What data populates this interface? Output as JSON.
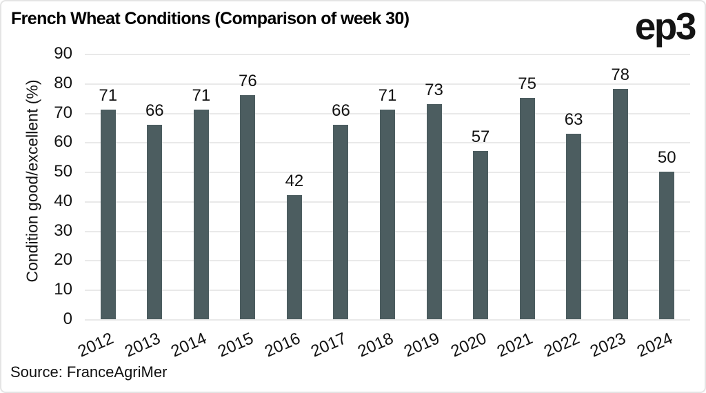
{
  "header": {
    "logo_text": "ep3"
  },
  "chart_data": {
    "type": "bar",
    "title": "French Wheat Conditions (Comparison of week 30)",
    "categories": [
      "2012",
      "2013",
      "2014",
      "2015",
      "2016",
      "2017",
      "2018",
      "2019",
      "2020",
      "2021",
      "2022",
      "2023",
      "2024"
    ],
    "values": [
      71,
      66,
      71,
      76,
      42,
      66,
      71,
      73,
      57,
      75,
      63,
      78,
      50
    ],
    "xlabel": "",
    "ylabel": "Condition good/excellent (%)",
    "ylim": [
      0,
      90
    ],
    "yticks": [
      0,
      10,
      20,
      30,
      40,
      50,
      60,
      70,
      80,
      90
    ],
    "grid": "horizontal",
    "legend": "none",
    "value_labels": true,
    "bar_color": "#4c5d60",
    "grid_color": "#e9e9e9",
    "text_color": "#121212"
  },
  "footer": {
    "source": "Source: FranceAgriMer"
  }
}
